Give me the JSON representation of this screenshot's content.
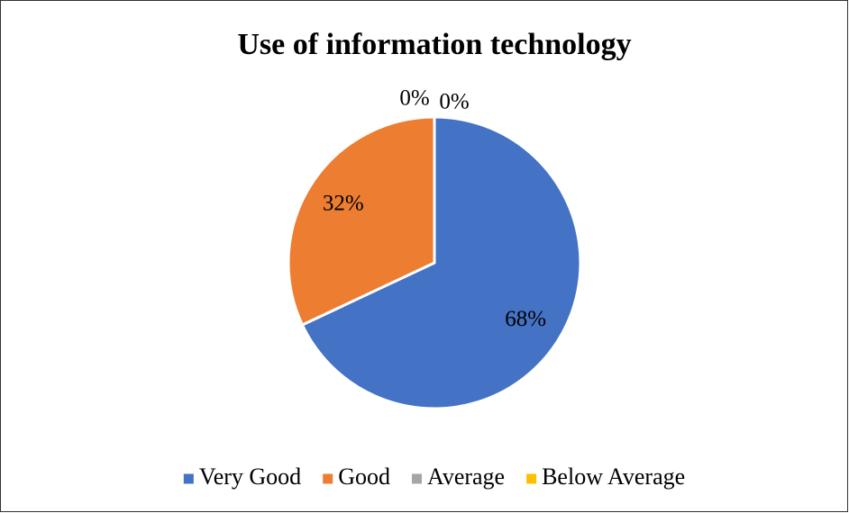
{
  "chart_data": {
    "type": "pie",
    "title": "Use of information technology",
    "categories": [
      "Very Good",
      "Good",
      "Average",
      "Below Average"
    ],
    "values": [
      68,
      32,
      0,
      0
    ],
    "value_labels": [
      "68%",
      "32%",
      "0%",
      "0%"
    ],
    "colors": [
      "#4472c4",
      "#ed7d31",
      "#a5a5a5",
      "#ffc000"
    ],
    "legend": "bottom"
  }
}
